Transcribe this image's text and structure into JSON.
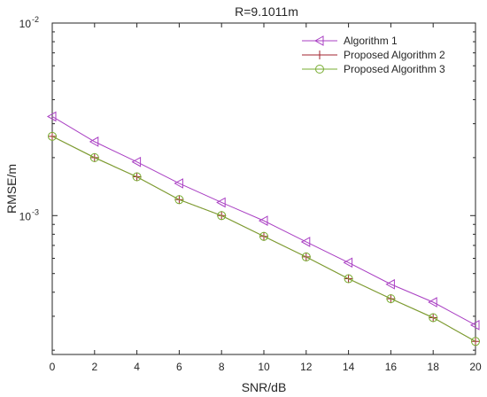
{
  "chart_data": {
    "type": "line",
    "title": "R=9.1011m",
    "xlabel": "SNR/dB",
    "ylabel": "RMSE/m",
    "x": [
      0,
      2,
      4,
      6,
      8,
      10,
      12,
      14,
      16,
      18,
      20
    ],
    "xlim": [
      0,
      20
    ],
    "x_ticks": [
      "0",
      "2",
      "4",
      "6",
      "8",
      "10",
      "12",
      "14",
      "16",
      "18",
      "20"
    ],
    "yscale": "log",
    "ylim": [
      0.00019,
      0.01
    ],
    "y_ticks": [
      {
        "base": "10",
        "exp": "-2",
        "value": 0.01
      },
      {
        "base": "10",
        "exp": "-3",
        "value": 0.001
      }
    ],
    "grid": false,
    "legend_position": "top-right",
    "series": [
      {
        "name": "Algorithm 1",
        "color": "#a93fc3",
        "marker": "triangle-left",
        "values": [
          0.00327,
          0.00242,
          0.0019,
          0.00147,
          0.00117,
          0.00094,
          0.00073,
          0.00057,
          0.00044,
          0.000355,
          0.00027
        ]
      },
      {
        "name": "Proposed Algorithm 2",
        "color": "#a0232f",
        "marker": "plus",
        "values": [
          0.00258,
          0.002,
          0.00159,
          0.00121,
          0.001,
          0.00078,
          0.00061,
          0.00047,
          0.00037,
          0.000295,
          0.000222
        ]
      },
      {
        "name": "Proposed Algorithm 3",
        "color": "#77ac30",
        "marker": "circle",
        "values": [
          0.00258,
          0.002,
          0.00159,
          0.00121,
          0.001,
          0.00078,
          0.00061,
          0.00047,
          0.00037,
          0.000295,
          0.000222
        ]
      }
    ]
  }
}
